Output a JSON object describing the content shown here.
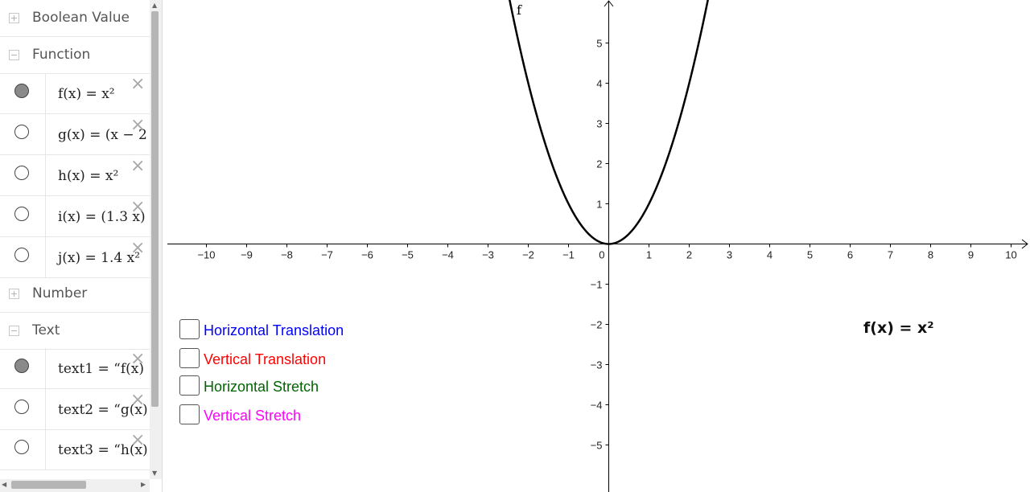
{
  "algebra": {
    "groups": {
      "boolean": {
        "label": "Boolean Value",
        "toggle": "+"
      },
      "function": {
        "label": "Function",
        "toggle": "−"
      },
      "number": {
        "label": "Number",
        "toggle": "+"
      },
      "text": {
        "label": "Text",
        "toggle": "−"
      }
    },
    "functions": [
      {
        "name": "f",
        "visible": true,
        "expr": "f(x)  =  x²"
      },
      {
        "name": "g",
        "visible": false,
        "expr": "g(x)  =  (x − 2"
      },
      {
        "name": "h",
        "visible": false,
        "expr": "h(x)  =  x²"
      },
      {
        "name": "i",
        "visible": false,
        "expr": "i(x)  =  (1.3 x)"
      },
      {
        "name": "j",
        "visible": false,
        "expr": "j(x)  =  1.4 x²"
      }
    ],
    "texts": [
      {
        "name": "text1",
        "visible": true,
        "expr": "text1  =  “f(x)"
      },
      {
        "name": "text2",
        "visible": false,
        "expr": "text2  =  “g(x)"
      },
      {
        "name": "text3",
        "visible": false,
        "expr": "text3  =  “h(x)"
      }
    ],
    "delete_glyph": "×"
  },
  "graph": {
    "curve_label": "f",
    "x_ticks": [
      "−10",
      "−9",
      "−8",
      "−7",
      "−6",
      "−5",
      "−4",
      "−3",
      "−2",
      "−1",
      "0",
      "1",
      "2",
      "3",
      "4",
      "5",
      "6",
      "7",
      "8",
      "9",
      "10"
    ],
    "y_ticks": [
      "5",
      "4",
      "3",
      "2",
      "1",
      "−1",
      "−2",
      "−3",
      "−4",
      "−5"
    ],
    "formula_text": "f(x)  =  x²",
    "curve_color": "#000000"
  },
  "checkboxes": [
    {
      "label": "Horizontal Translation",
      "color": "#0000ff",
      "checked": false
    },
    {
      "label": "Vertical Translation",
      "color": "#ff0000",
      "checked": false
    },
    {
      "label": "Horizontal Stretch",
      "color": "#006400",
      "checked": false
    },
    {
      "label": "Vertical Stretch",
      "color": "#ff00ff",
      "checked": false
    }
  ]
}
